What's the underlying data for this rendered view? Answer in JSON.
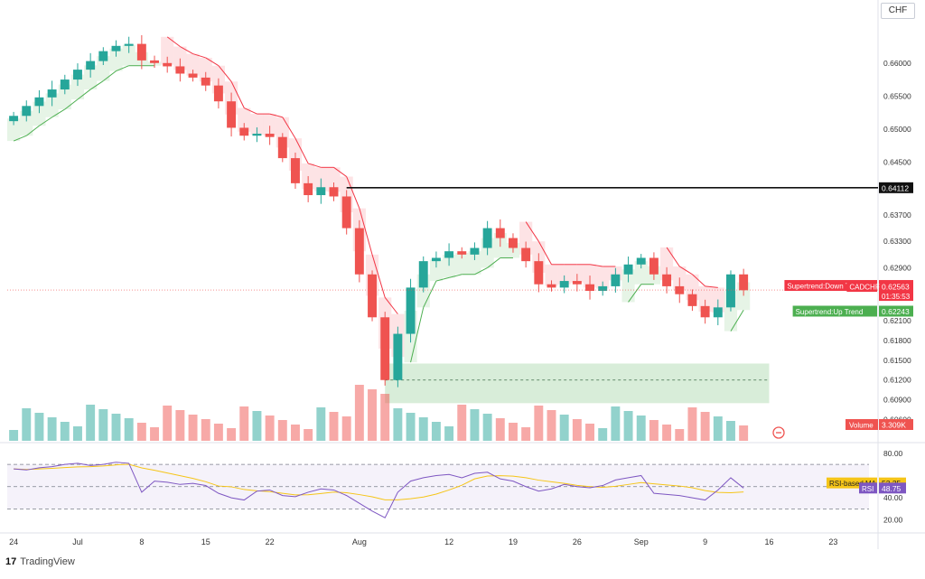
{
  "header": {
    "currency": "CHF"
  },
  "brand": {
    "logo_glyph": "17",
    "name": "TradingView"
  },
  "chart_data": [
    {
      "type": "candlestick",
      "symbol": "CADCHF",
      "price_ticks": [
        "0.66000",
        "0.65500",
        "0.65000",
        "0.64500",
        "0.63700",
        "0.63300",
        "0.62900",
        "0.62100",
        "0.61800",
        "0.61500",
        "0.61200",
        "0.60900",
        "0.60600"
      ],
      "ylim": [
        0.6028,
        0.669
      ],
      "x_ticks": [
        {
          "i": 0,
          "label": "24"
        },
        {
          "i": 5,
          "label": "Jul"
        },
        {
          "i": 10,
          "label": "8"
        },
        {
          "i": 15,
          "label": "15"
        },
        {
          "i": 20,
          "label": "22"
        },
        {
          "i": 27,
          "label": "Aug"
        },
        {
          "i": 34,
          "label": "12"
        },
        {
          "i": 39,
          "label": "19"
        },
        {
          "i": 44,
          "label": "26"
        },
        {
          "i": 49,
          "label": "Sep"
        },
        {
          "i": 54,
          "label": "9"
        },
        {
          "i": 59,
          "label": "16"
        },
        {
          "i": 64,
          "label": "23"
        }
      ],
      "closes": [
        0.652,
        0.6535,
        0.6548,
        0.656,
        0.6575,
        0.659,
        0.6603,
        0.6618,
        0.6626,
        0.6629,
        0.6604,
        0.66,
        0.6595,
        0.6584,
        0.6578,
        0.6566,
        0.6542,
        0.6502,
        0.649,
        0.6493,
        0.6488,
        0.6456,
        0.6418,
        0.64,
        0.6412,
        0.6398,
        0.635,
        0.628,
        0.6215,
        0.612,
        0.619,
        0.626,
        0.63,
        0.6305,
        0.6315,
        0.631,
        0.632,
        0.635,
        0.6335,
        0.632,
        0.63,
        0.6265,
        0.626,
        0.627,
        0.6265,
        0.6255,
        0.6262,
        0.628,
        0.6295,
        0.6305,
        0.628,
        0.6262,
        0.625,
        0.6232,
        0.6215,
        0.623,
        0.628,
        0.6256
      ],
      "horizontal_line": {
        "price": 0.64112,
        "label": "0.64112"
      },
      "zone": {
        "top": 0.6145,
        "bottom": 0.6085,
        "mid": 0.612
      },
      "price_labels": [
        {
          "key": "down",
          "label": "Supertrend:Down Trend",
          "value": "0.62632",
          "price": 0.62632,
          "color": "#f23645"
        },
        {
          "key": "cur",
          "label": "CADCHF",
          "value": "0.62563",
          "price": 0.62563,
          "timer": "01:35:53",
          "color": "#f23645"
        },
        {
          "key": "up",
          "label": "Supertrend:Up Trend",
          "value": "0.62243",
          "price": 0.62243,
          "color": "#4caf50"
        }
      ],
      "volume": {
        "label": "Volume",
        "value": "3.309K"
      }
    },
    {
      "type": "line",
      "name": "RSI",
      "ticks": [
        "80.00",
        "40.00",
        "20.00"
      ],
      "ylim": [
        10,
        88
      ],
      "bands": {
        "upper": 70,
        "middle": 50,
        "lower": 30
      },
      "values": [
        66,
        65,
        67,
        68,
        70,
        71,
        69,
        70,
        72,
        71,
        45,
        55,
        54,
        52,
        53,
        51,
        44,
        40,
        38,
        46,
        47,
        42,
        41,
        45,
        48,
        47,
        42,
        35,
        28,
        22,
        45,
        55,
        58,
        60,
        61,
        58,
        62,
        63,
        57,
        55,
        50,
        46,
        48,
        52,
        50,
        49,
        51,
        56,
        58,
        60,
        44,
        43,
        42,
        40,
        38,
        47,
        58,
        48.75
      ],
      "ma": {
        "label": "RSI-based MA",
        "value": "53.35"
      },
      "rsi": {
        "label": "RSI",
        "value": "48.75"
      }
    }
  ],
  "colors": {
    "up": "#26a69a",
    "down": "#ef5350",
    "supertrend_up": "#4caf50",
    "supertrend_down": "#f23645",
    "rsi_line": "#7e57c2",
    "rsi_ma": "#f5c518"
  }
}
